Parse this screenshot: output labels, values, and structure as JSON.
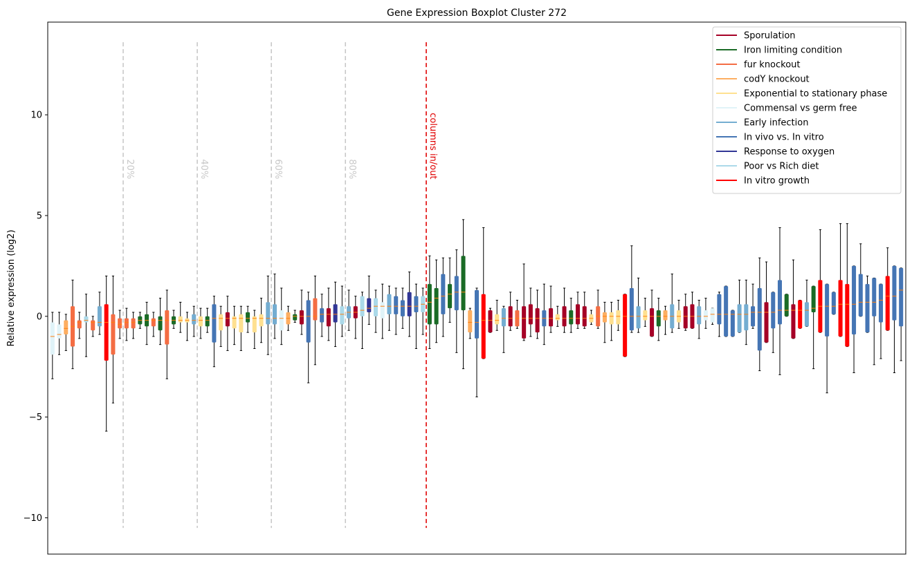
{
  "chart_data": {
    "type": "boxplot",
    "title": "Gene Expression Boxplot Cluster 272",
    "ylabel": "Relative expression (log2)",
    "xlabel": "",
    "ylim": [
      -11.8,
      14.6
    ],
    "yticks": [
      -10,
      -5,
      0,
      5,
      10
    ],
    "grid": false,
    "legend_position": "top-right",
    "legend": [
      {
        "name": "Sporulation",
        "color": "#a50026"
      },
      {
        "name": "Iron limiting condition",
        "color": "#1a6b26"
      },
      {
        "name": "fur knockout",
        "color": "#f46d43"
      },
      {
        "name": "codY knockout",
        "color": "#fdae61"
      },
      {
        "name": "Exponential to stationary phase",
        "color": "#fee090"
      },
      {
        "name": "Commensal vs germ free",
        "color": "#e0f3f8"
      },
      {
        "name": "Early infection",
        "color": "#74add1"
      },
      {
        "name": "In vivo vs. In vitro",
        "color": "#4575b4"
      },
      {
        "name": "Response to oxygen",
        "color": "#313695"
      },
      {
        "name": "Poor vs Rich diet",
        "color": "#abd9e9"
      },
      {
        "name": "In vitro growth",
        "color": "#ff0000"
      }
    ],
    "vlines": [
      {
        "label": "20%",
        "column": 10.5,
        "color": "#c8c8c8"
      },
      {
        "label": "40%",
        "column": 21.5,
        "color": "#c8c8c8"
      },
      {
        "label": "60%",
        "column": 32.5,
        "color": "#c8c8c8"
      },
      {
        "label": "80%",
        "column": 43.5,
        "color": "#c8c8c8"
      },
      {
        "label": "columns in/out",
        "column": 55.5,
        "color": "#e00000"
      }
    ],
    "vline_range": [
      -10.5,
      13.6
    ],
    "boxes": [
      {
        "g": 5,
        "q1": -1.9,
        "med": -1.0,
        "q3": -0.3,
        "lo": -3.1,
        "hi": 0.2
      },
      {
        "g": 5,
        "q1": -1.1,
        "med": -0.9,
        "q3": -0.4,
        "lo": -1.9,
        "hi": 0.2
      },
      {
        "g": 3,
        "q1": -0.9,
        "med": -0.6,
        "q3": -0.2,
        "lo": -1.7,
        "hi": 0.1
      },
      {
        "g": 2,
        "q1": -1.5,
        "med": -0.5,
        "q3": 0.5,
        "lo": -2.6,
        "hi": 1.8
      },
      {
        "g": 2,
        "q1": -0.6,
        "med": -0.3,
        "q3": -0.2,
        "lo": -1.1,
        "hi": 0.2
      },
      {
        "g": 9,
        "q1": -0.3,
        "med": -0.2,
        "q3": 0.0,
        "lo": -2.0,
        "hi": 1.1
      },
      {
        "g": 2,
        "q1": -0.7,
        "med": -0.3,
        "q3": -0.2,
        "lo": -1.0,
        "hi": 0.0
      },
      {
        "g": 6,
        "q1": -0.5,
        "med": -0.3,
        "q3": 0.5,
        "lo": -0.9,
        "hi": 1.2
      },
      {
        "g": 10,
        "q1": -2.2,
        "med": -0.3,
        "q3": 0.6,
        "lo": -5.7,
        "hi": 2.0
      },
      {
        "g": 2,
        "q1": -1.9,
        "med": -0.3,
        "q3": 0.1,
        "lo": -4.3,
        "hi": 2.0
      },
      {
        "g": 2,
        "q1": -0.6,
        "med": -0.4,
        "q3": -0.1,
        "lo": -1.1,
        "hi": 0.3
      },
      {
        "g": 2,
        "q1": -0.6,
        "med": -0.3,
        "q3": -0.1,
        "lo": -1.2,
        "hi": 0.4
      },
      {
        "g": 2,
        "q1": -0.6,
        "med": -0.3,
        "q3": -0.1,
        "lo": -1.1,
        "hi": 0.2
      },
      {
        "g": 1,
        "q1": -0.4,
        "med": -0.2,
        "q3": 0.0,
        "lo": -0.6,
        "hi": 0.2
      },
      {
        "g": 1,
        "q1": -0.5,
        "med": -0.2,
        "q3": 0.1,
        "lo": -1.4,
        "hi": 0.7
      },
      {
        "g": 2,
        "q1": -0.5,
        "med": -0.2,
        "q3": -0.1,
        "lo": -1.0,
        "hi": 0.2
      },
      {
        "g": 1,
        "q1": -0.7,
        "med": -0.2,
        "q3": 0.0,
        "lo": -1.4,
        "hi": 0.9
      },
      {
        "g": 2,
        "q1": -1.4,
        "med": -0.2,
        "q3": 0.3,
        "lo": -3.1,
        "hi": 1.3
      },
      {
        "g": 1,
        "q1": -0.4,
        "med": -0.2,
        "q3": 0.0,
        "lo": -0.6,
        "hi": 0.3
      },
      {
        "g": 4,
        "q1": -0.3,
        "med": -0.2,
        "q3": 0.0,
        "lo": -0.8,
        "hi": 0.7
      },
      {
        "g": 4,
        "q1": -0.3,
        "med": -0.2,
        "q3": -0.1,
        "lo": -1.2,
        "hi": 0.2
      },
      {
        "g": 6,
        "q1": -0.4,
        "med": -0.2,
        "q3": 0.1,
        "lo": -1.0,
        "hi": 0.5
      },
      {
        "g": 4,
        "q1": -0.5,
        "med": -0.2,
        "q3": 0.0,
        "lo": -1.1,
        "hi": 0.4
      },
      {
        "g": 1,
        "q1": -0.5,
        "med": -0.2,
        "q3": 0.0,
        "lo": -0.8,
        "hi": 0.4
      },
      {
        "g": 7,
        "q1": -1.3,
        "med": -0.1,
        "q3": 0.6,
        "lo": -2.5,
        "hi": 1.0
      },
      {
        "g": 4,
        "q1": -0.7,
        "med": -0.1,
        "q3": 0.1,
        "lo": -1.5,
        "hi": 0.5
      },
      {
        "g": 0,
        "q1": -0.5,
        "med": -0.1,
        "q3": 0.2,
        "lo": -1.7,
        "hi": 1.0
      },
      {
        "g": 4,
        "q1": -0.6,
        "med": -0.1,
        "q3": 0.0,
        "lo": -1.4,
        "hi": 0.5
      },
      {
        "g": 4,
        "q1": -0.8,
        "med": -0.1,
        "q3": 0.1,
        "lo": -1.7,
        "hi": 0.5
      },
      {
        "g": 1,
        "q1": -0.3,
        "med": -0.1,
        "q3": 0.2,
        "lo": -0.8,
        "hi": 0.5
      },
      {
        "g": 4,
        "q1": -0.8,
        "med": -0.1,
        "q3": 0.0,
        "lo": -1.6,
        "hi": 0.3
      },
      {
        "g": 4,
        "q1": -0.5,
        "med": -0.1,
        "q3": 0.1,
        "lo": -1.3,
        "hi": 0.9
      },
      {
        "g": 6,
        "q1": -0.4,
        "med": -0.1,
        "q3": 0.7,
        "lo": -1.9,
        "hi": 2.0
      },
      {
        "g": 6,
        "q1": -0.4,
        "med": -0.1,
        "q3": 0.6,
        "lo": -1.1,
        "hi": 2.1
      },
      {
        "g": 5,
        "q1": -0.7,
        "med": -0.1,
        "q3": 0.3,
        "lo": -1.4,
        "hi": 1.4
      },
      {
        "g": 3,
        "q1": -0.4,
        "med": -0.1,
        "q3": 0.2,
        "lo": -0.7,
        "hi": 0.5
      },
      {
        "g": 1,
        "q1": -0.2,
        "med": 0.0,
        "q3": 0.1,
        "lo": -0.3,
        "hi": 0.3
      },
      {
        "g": 0,
        "q1": -0.4,
        "med": 0.0,
        "q3": 0.3,
        "lo": -0.9,
        "hi": 1.3
      },
      {
        "g": 7,
        "q1": -1.3,
        "med": 0.0,
        "q3": 0.8,
        "lo": -3.3,
        "hi": 1.2
      },
      {
        "g": 2,
        "q1": -0.2,
        "med": 0.0,
        "q3": 0.9,
        "lo": -2.4,
        "hi": 2.0
      },
      {
        "g": 7,
        "q1": -0.3,
        "med": 0.1,
        "q3": 0.4,
        "lo": -1.0,
        "hi": 1.1
      },
      {
        "g": 0,
        "q1": -0.5,
        "med": 0.1,
        "q3": 0.4,
        "lo": -1.2,
        "hi": 1.4
      },
      {
        "g": 8,
        "q1": -0.3,
        "med": 0.1,
        "q3": 0.6,
        "lo": -1.5,
        "hi": 1.7
      },
      {
        "g": 9,
        "q1": -0.4,
        "med": 0.1,
        "q3": 0.5,
        "lo": -1.0,
        "hi": 1.5
      },
      {
        "g": 6,
        "q1": -0.1,
        "med": 0.2,
        "q3": 0.5,
        "lo": -0.7,
        "hi": 1.3
      },
      {
        "g": 0,
        "q1": -0.1,
        "med": 0.2,
        "q3": 0.5,
        "lo": -1.1,
        "hi": 1.0
      },
      {
        "g": 9,
        "q1": 0.0,
        "med": 0.3,
        "q3": 1.0,
        "lo": -1.6,
        "hi": 1.2
      },
      {
        "g": 8,
        "q1": 0.2,
        "med": 0.4,
        "q3": 0.9,
        "lo": -0.4,
        "hi": 2.0
      },
      {
        "g": 9,
        "q1": 0.0,
        "med": 0.5,
        "q3": 0.9,
        "lo": -0.8,
        "hi": 1.3
      },
      {
        "g": 5,
        "q1": -0.1,
        "med": 0.5,
        "q3": 0.7,
        "lo": -1.1,
        "hi": 1.6
      },
      {
        "g": 6,
        "q1": 0.1,
        "med": 0.5,
        "q3": 1.1,
        "lo": -0.7,
        "hi": 1.5
      },
      {
        "g": 7,
        "q1": 0.1,
        "med": 0.5,
        "q3": 1.0,
        "lo": -0.9,
        "hi": 1.4
      },
      {
        "g": 7,
        "q1": 0.0,
        "med": 0.5,
        "q3": 0.8,
        "lo": -0.6,
        "hi": 1.4
      },
      {
        "g": 8,
        "q1": 0.0,
        "med": 0.5,
        "q3": 1.2,
        "lo": -1.0,
        "hi": 2.2
      },
      {
        "g": 7,
        "q1": 0.2,
        "med": 0.5,
        "q3": 1.0,
        "lo": -1.6,
        "hi": 1.6
      },
      {
        "g": 9,
        "q1": 0.2,
        "med": 0.6,
        "q3": 1.0,
        "lo": -0.9,
        "hi": 1.4
      },
      {
        "g": 1,
        "q1": -0.4,
        "med": 0.7,
        "q3": 1.6,
        "lo": -1.6,
        "hi": 3.0
      },
      {
        "g": 1,
        "q1": -0.4,
        "med": 0.9,
        "q3": 1.4,
        "lo": -1.3,
        "hi": 2.8
      },
      {
        "g": 7,
        "q1": 0.1,
        "med": 1.0,
        "q3": 2.1,
        "lo": -1.0,
        "hi": 2.9
      },
      {
        "g": 1,
        "q1": 0.4,
        "med": 1.1,
        "q3": 1.6,
        "lo": -0.3,
        "hi": 2.9
      },
      {
        "g": 7,
        "q1": 0.3,
        "med": 1.2,
        "q3": 2.0,
        "lo": -1.8,
        "hi": 3.3
      },
      {
        "g": 1,
        "q1": 0.3,
        "med": 1.2,
        "q3": 3.0,
        "lo": -2.6,
        "hi": 4.8
      },
      {
        "g": 3,
        "q1": -0.8,
        "med": -0.3,
        "q3": 0.3,
        "lo": -1.1,
        "hi": 0.4
      },
      {
        "g": 7,
        "q1": -1.1,
        "med": -0.3,
        "q3": 1.3,
        "lo": -4.0,
        "hi": 1.4
      },
      {
        "g": 10,
        "q1": -2.1,
        "med": -0.2,
        "q3": 1.1,
        "lo": -2.1,
        "hi": 4.4
      },
      {
        "g": 0,
        "q1": -0.8,
        "med": -0.2,
        "q3": 0.3,
        "lo": -0.8,
        "hi": 0.4
      },
      {
        "g": 4,
        "q1": -0.4,
        "med": -0.2,
        "q3": 0.1,
        "lo": -0.7,
        "hi": 0.8
      },
      {
        "g": 6,
        "q1": -0.5,
        "med": -0.1,
        "q3": 0.4,
        "lo": -1.8,
        "hi": 0.5
      },
      {
        "g": 0,
        "q1": -0.5,
        "med": -0.1,
        "q3": 0.5,
        "lo": -0.7,
        "hi": 1.2
      },
      {
        "g": 2,
        "q1": -0.5,
        "med": -0.1,
        "q3": 0.3,
        "lo": -0.6,
        "hi": 0.8
      },
      {
        "g": 0,
        "q1": -1.1,
        "med": -0.1,
        "q3": 0.5,
        "lo": -1.2,
        "hi": 2.6
      },
      {
        "g": 0,
        "q1": -0.4,
        "med": -0.1,
        "q3": 0.6,
        "lo": -1.0,
        "hi": 1.4
      },
      {
        "g": 0,
        "q1": -0.8,
        "med": -0.1,
        "q3": 0.4,
        "lo": -1.1,
        "hi": 1.3
      },
      {
        "g": 7,
        "q1": -0.5,
        "med": -0.1,
        "q3": 0.3,
        "lo": -1.4,
        "hi": 1.6
      },
      {
        "g": 0,
        "q1": -0.5,
        "med": -0.1,
        "q3": 0.4,
        "lo": -0.8,
        "hi": 1.5
      },
      {
        "g": 4,
        "q1": -0.2,
        "med": -0.1,
        "q3": 0.1,
        "lo": -0.5,
        "hi": 0.5
      },
      {
        "g": 0,
        "q1": -0.5,
        "med": -0.1,
        "q3": 0.5,
        "lo": -0.8,
        "hi": 1.4
      },
      {
        "g": 1,
        "q1": -0.4,
        "med": -0.1,
        "q3": 0.3,
        "lo": -0.8,
        "hi": 0.9
      },
      {
        "g": 0,
        "q1": -0.4,
        "med": -0.1,
        "q3": 0.6,
        "lo": -0.6,
        "hi": 1.2
      },
      {
        "g": 0,
        "q1": -0.5,
        "med": -0.1,
        "q3": 0.5,
        "lo": -0.6,
        "hi": 1.2
      },
      {
        "g": 4,
        "q1": -0.3,
        "med": -0.1,
        "q3": 0.1,
        "lo": -0.4,
        "hi": 0.3
      },
      {
        "g": 2,
        "q1": -0.5,
        "med": 0.0,
        "q3": 0.5,
        "lo": -0.6,
        "hi": 1.3
      },
      {
        "g": 3,
        "q1": -0.3,
        "med": 0.0,
        "q3": 0.2,
        "lo": -1.3,
        "hi": 0.7
      },
      {
        "g": 4,
        "q1": -0.4,
        "med": 0.0,
        "q3": 0.2,
        "lo": -1.2,
        "hi": 0.7
      },
      {
        "g": 4,
        "q1": -0.4,
        "med": 0.0,
        "q3": 0.3,
        "lo": -0.7,
        "hi": 0.8
      },
      {
        "g": 10,
        "q1": -2.0,
        "med": 0.0,
        "q3": 1.1,
        "lo": -2.0,
        "hi": 1.1
      },
      {
        "g": 7,
        "q1": -0.7,
        "med": 0.0,
        "q3": 1.4,
        "lo": -0.8,
        "hi": 3.5
      },
      {
        "g": 6,
        "q1": -0.6,
        "med": 0.0,
        "q3": 0.5,
        "lo": -0.8,
        "hi": 1.9
      },
      {
        "g": 4,
        "q1": -0.2,
        "med": 0.0,
        "q3": 0.3,
        "lo": -0.5,
        "hi": 0.9
      },
      {
        "g": 0,
        "q1": -1.0,
        "med": 0.0,
        "q3": 0.4,
        "lo": -1.0,
        "hi": 1.3
      },
      {
        "g": 1,
        "q1": -0.5,
        "med": 0.0,
        "q3": 0.3,
        "lo": -1.2,
        "hi": 0.9
      },
      {
        "g": 3,
        "q1": -0.2,
        "med": 0.0,
        "q3": 0.3,
        "lo": -0.9,
        "hi": 0.5
      },
      {
        "g": 6,
        "q1": -0.6,
        "med": 0.0,
        "q3": 0.6,
        "lo": -0.8,
        "hi": 2.1
      },
      {
        "g": 4,
        "q1": -0.3,
        "med": 0.0,
        "q3": 0.3,
        "lo": -0.6,
        "hi": 0.8
      },
      {
        "g": 0,
        "q1": -0.6,
        "med": 0.0,
        "q3": 0.5,
        "lo": -0.7,
        "hi": 1.1
      },
      {
        "g": 0,
        "q1": -0.6,
        "med": 0.0,
        "q3": 0.6,
        "lo": -0.6,
        "hi": 1.2
      },
      {
        "g": 6,
        "q1": -0.4,
        "med": 0.0,
        "q3": 0.5,
        "lo": -1.1,
        "hi": 0.8
      },
      {
        "g": 5,
        "q1": -0.2,
        "med": 0.0,
        "q3": 0.3,
        "lo": -0.6,
        "hi": 0.9
      },
      {
        "g": 5,
        "q1": -0.3,
        "med": 0.1,
        "q3": 0.4,
        "lo": -0.4,
        "hi": 0.4
      },
      {
        "g": 7,
        "q1": -0.4,
        "med": 0.1,
        "q3": 1.1,
        "lo": -1.0,
        "hi": 1.2
      },
      {
        "g": 7,
        "q1": -1.0,
        "med": 0.1,
        "q3": 1.5,
        "lo": -1.0,
        "hi": 1.5
      },
      {
        "g": 7,
        "q1": -1.0,
        "med": 0.1,
        "q3": 0.3,
        "lo": -1.0,
        "hi": 0.3
      },
      {
        "g": 6,
        "q1": -0.8,
        "med": 0.1,
        "q3": 0.6,
        "lo": -0.8,
        "hi": 1.8
      },
      {
        "g": 6,
        "q1": -0.7,
        "med": 0.1,
        "q3": 0.6,
        "lo": -1.4,
        "hi": 1.8
      },
      {
        "g": 7,
        "q1": -0.5,
        "med": 0.2,
        "q3": 0.5,
        "lo": -0.6,
        "hi": 1.6
      },
      {
        "g": 7,
        "q1": -1.7,
        "med": 0.2,
        "q3": 1.4,
        "lo": -2.7,
        "hi": 2.9
      },
      {
        "g": 0,
        "q1": -1.3,
        "med": 0.2,
        "q3": 0.7,
        "lo": -1.3,
        "hi": 2.7
      },
      {
        "g": 7,
        "q1": -0.6,
        "med": 0.2,
        "q3": 1.2,
        "lo": -1.8,
        "hi": 1.2
      },
      {
        "g": 7,
        "q1": -0.4,
        "med": 0.3,
        "q3": 1.8,
        "lo": -2.9,
        "hi": 4.4
      },
      {
        "g": 1,
        "q1": 0.0,
        "med": 0.3,
        "q3": 1.1,
        "lo": 0.0,
        "hi": 1.1
      },
      {
        "g": 0,
        "q1": -1.1,
        "med": 0.3,
        "q3": 0.6,
        "lo": -1.1,
        "hi": 2.8
      },
      {
        "g": 10,
        "q1": -0.6,
        "med": 0.3,
        "q3": 0.8,
        "lo": -0.6,
        "hi": 0.8
      },
      {
        "g": 6,
        "q1": -0.5,
        "med": 0.3,
        "q3": 0.7,
        "lo": -0.5,
        "hi": 1.8
      },
      {
        "g": 1,
        "q1": 0.2,
        "med": 0.4,
        "q3": 1.5,
        "lo": -2.6,
        "hi": 1.5
      },
      {
        "g": 10,
        "q1": -0.8,
        "med": 0.5,
        "q3": 1.8,
        "lo": -0.8,
        "hi": 4.3
      },
      {
        "g": 7,
        "q1": -1.0,
        "med": 0.5,
        "q3": 1.6,
        "lo": -3.8,
        "hi": 1.6
      },
      {
        "g": 7,
        "q1": 0.1,
        "med": 0.5,
        "q3": 1.2,
        "lo": 0.1,
        "hi": 1.2
      },
      {
        "g": 10,
        "q1": -1.0,
        "med": 0.6,
        "q3": 1.8,
        "lo": -1.0,
        "hi": 4.6
      },
      {
        "g": 10,
        "q1": -1.5,
        "med": 0.6,
        "q3": 1.6,
        "lo": -1.5,
        "hi": 4.6
      },
      {
        "g": 7,
        "q1": -0.9,
        "med": 0.6,
        "q3": 2.5,
        "lo": -2.8,
        "hi": 2.5
      },
      {
        "g": 7,
        "q1": 0.0,
        "med": 0.7,
        "q3": 2.1,
        "lo": 0.0,
        "hi": 3.6
      },
      {
        "g": 7,
        "q1": -0.8,
        "med": 0.7,
        "q3": 1.6,
        "lo": -0.8,
        "hi": 2.0
      },
      {
        "g": 7,
        "q1": 0.0,
        "med": 0.7,
        "q3": 1.9,
        "lo": -2.4,
        "hi": 1.9
      },
      {
        "g": 7,
        "q1": -0.3,
        "med": 0.8,
        "q3": 1.6,
        "lo": -2.1,
        "hi": 1.6
      },
      {
        "g": 10,
        "q1": -0.7,
        "med": 1.0,
        "q3": 2.0,
        "lo": -0.7,
        "hi": 3.4
      },
      {
        "g": 7,
        "q1": -0.2,
        "med": 1.0,
        "q3": 2.5,
        "lo": -2.8,
        "hi": 2.5
      },
      {
        "g": 7,
        "q1": -0.5,
        "med": 1.3,
        "q3": 2.4,
        "lo": -2.2,
        "hi": 2.4
      }
    ]
  }
}
